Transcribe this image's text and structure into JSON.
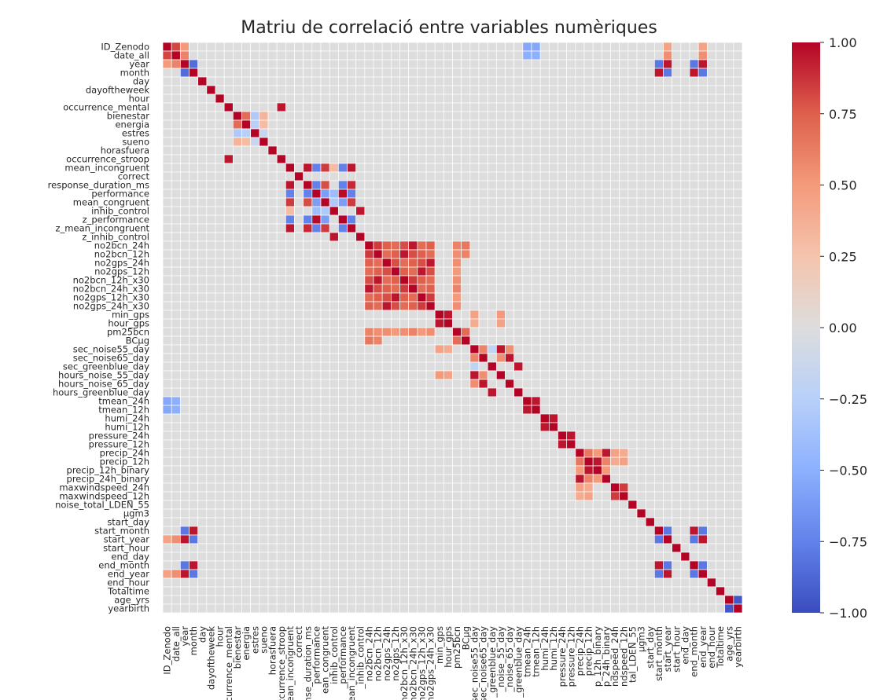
{
  "chart_data": {
    "type": "heatmap",
    "title": "Matriu de correlació entre variables numèriques",
    "variables": [
      "ID_Zenodo",
      "date_all",
      "year",
      "month",
      "day",
      "dayoftheweek",
      "hour",
      "occurrence_mental",
      "bienestar",
      "energia",
      "estres",
      "sueno",
      "horasfuera",
      "occurrence_stroop",
      "mean_incongruent",
      "correct",
      "response_duration_ms",
      "performance",
      "mean_congruent",
      "inhib_control",
      "z_performance",
      "z_mean_incongruent",
      "z_inhib_control",
      "no2bcn_24h",
      "no2bcn_12h",
      "no2gps_24h",
      "no2gps_12h",
      "no2bcn_12h_x30",
      "no2bcn_24h_x30",
      "no2gps_12h_x30",
      "no2gps_24h_x30",
      "min_gps",
      "hour_gps",
      "pm25bcn",
      "BCμg",
      "sec_noise55_day",
      "sec_noise65_day",
      "sec_greenblue_day",
      "hours_noise_55_day",
      "hours_noise_65_day",
      "hours_greenblue_day",
      "tmean_24h",
      "tmean_12h",
      "humi_24h",
      "humi_12h",
      "pressure_24h",
      "pressure_12h",
      "precip_24h",
      "precip_12h",
      "precip_12h_binary",
      "precip_24h_binary",
      "maxwindspeed_24h",
      "maxwindspeed_12h",
      "noise_total_LDEN_55",
      "μgm3",
      "start_day",
      "start_month",
      "start_year",
      "start_hour",
      "end_day",
      "end_month",
      "end_year",
      "end_hour",
      "Totaltime",
      "age_yrs",
      "yearbirth"
    ],
    "xtick_labels": [
      "ID_Zenodo",
      "date_all",
      "year",
      "month",
      "day",
      "dayoftheweek",
      "hour",
      "ccurrence_mental",
      "bienestar",
      "energia",
      "estres",
      "sueno",
      "horasfuera",
      "ccurrence_stroop",
      "ean_incongruent",
      "correct",
      "nse_duration_ms",
      "performance",
      "ean_congruent",
      "inhib_control",
      "_performance",
      "_mean_incongruent",
      "_inhib_control",
      "no2bcn_24h",
      "no2bcn_12h",
      "no2gps_24h",
      "no2gps_12h",
      "no2bcn_12h_x30",
      "no2bcn_24h_x30",
      "no2gps_12h_x30",
      "no2gps_24h_x30",
      "min_gps",
      "hour_gps",
      "pm25bcn",
      "BCμg",
      "sec_noise55_day",
      "sec_noise65_day",
      "_greenblue_day",
      "_noise_55_day",
      "_noise_65_day",
      "_greenblue_day",
      "tmean_24h",
      "tmean_12h",
      "humi_24h",
      "humi_12h",
      "pressure_24h",
      "pressure_12h",
      "precip_24h",
      "precip_12h",
      "p_12h_binary",
      "p_24h_binary",
      "ndspeed_24h",
      "ndspeed_12h",
      "tal_LDEN_55",
      "μgm3",
      "start_day",
      "start_month",
      "start_year",
      "start_hour",
      "end_day",
      "end_month",
      "end_year",
      "end_hour",
      "Totaltime",
      "age_yrs",
      "yearbirth"
    ],
    "value_range": [
      -1.0,
      1.0
    ],
    "colormap": "coolwarm",
    "colorbar_ticks": [
      "1.00",
      "0.75",
      "0.50",
      "0.25",
      "0.00",
      "−0.25",
      "−0.50",
      "−0.75",
      "−1.00"
    ],
    "correlations": [
      [
        0,
        1,
        0.82
      ],
      [
        0,
        2,
        0.5
      ],
      [
        0,
        41,
        -0.55
      ],
      [
        0,
        42,
        -0.55
      ],
      [
        0,
        57,
        0.45
      ],
      [
        0,
        61,
        0.45
      ],
      [
        1,
        2,
        0.6
      ],
      [
        1,
        41,
        -0.5
      ],
      [
        1,
        42,
        -0.5
      ],
      [
        1,
        57,
        0.55
      ],
      [
        1,
        61,
        0.55
      ],
      [
        2,
        3,
        -0.85
      ],
      [
        2,
        57,
        0.95
      ],
      [
        2,
        61,
        0.95
      ],
      [
        2,
        56,
        -0.8
      ],
      [
        2,
        60,
        -0.8
      ],
      [
        3,
        56,
        0.95
      ],
      [
        3,
        60,
        0.95
      ],
      [
        3,
        57,
        -0.8
      ],
      [
        3,
        61,
        -0.8
      ],
      [
        7,
        13,
        0.95
      ],
      [
        8,
        9,
        0.7
      ],
      [
        8,
        10,
        -0.3
      ],
      [
        8,
        11,
        0.35
      ],
      [
        9,
        10,
        -0.25
      ],
      [
        9,
        11,
        0.3
      ],
      [
        10,
        11,
        -0.15
      ],
      [
        14,
        16,
        0.95
      ],
      [
        14,
        17,
        -0.75
      ],
      [
        14,
        18,
        0.85
      ],
      [
        14,
        20,
        -0.75
      ],
      [
        14,
        21,
        0.95
      ],
      [
        14,
        19,
        0.3
      ],
      [
        16,
        17,
        -0.75
      ],
      [
        16,
        18,
        0.8
      ],
      [
        16,
        20,
        -0.75
      ],
      [
        16,
        21,
        0.9
      ],
      [
        17,
        18,
        -0.6
      ],
      [
        17,
        20,
        0.98
      ],
      [
        17,
        21,
        -0.75
      ],
      [
        17,
        19,
        -0.4
      ],
      [
        18,
        19,
        -0.3
      ],
      [
        18,
        20,
        -0.6
      ],
      [
        18,
        21,
        0.85
      ],
      [
        19,
        22,
        0.95
      ],
      [
        20,
        21,
        -0.75
      ],
      [
        23,
        24,
        0.85
      ],
      [
        23,
        25,
        0.75
      ],
      [
        23,
        26,
        0.7
      ],
      [
        23,
        27,
        0.8
      ],
      [
        23,
        28,
        0.95
      ],
      [
        23,
        29,
        0.7
      ],
      [
        23,
        30,
        0.75
      ],
      [
        24,
        25,
        0.7
      ],
      [
        24,
        26,
        0.75
      ],
      [
        24,
        27,
        0.95
      ],
      [
        24,
        28,
        0.8
      ],
      [
        24,
        29,
        0.75
      ],
      [
        24,
        30,
        0.7
      ],
      [
        25,
        26,
        0.8
      ],
      [
        25,
        27,
        0.7
      ],
      [
        25,
        28,
        0.75
      ],
      [
        25,
        29,
        0.8
      ],
      [
        25,
        30,
        0.95
      ],
      [
        26,
        27,
        0.75
      ],
      [
        26,
        28,
        0.7
      ],
      [
        26,
        29,
        0.95
      ],
      [
        26,
        30,
        0.8
      ],
      [
        27,
        28,
        0.85
      ],
      [
        27,
        29,
        0.75
      ],
      [
        27,
        30,
        0.7
      ],
      [
        28,
        29,
        0.7
      ],
      [
        28,
        30,
        0.75
      ],
      [
        29,
        30,
        0.85
      ],
      [
        31,
        32,
        0.95
      ],
      [
        33,
        34,
        0.7
      ],
      [
        23,
        33,
        0.6
      ],
      [
        23,
        34,
        0.65
      ],
      [
        24,
        33,
        0.55
      ],
      [
        24,
        34,
        0.6
      ],
      [
        25,
        33,
        0.55
      ],
      [
        26,
        33,
        0.5
      ],
      [
        27,
        33,
        0.55
      ],
      [
        28,
        33,
        0.6
      ],
      [
        29,
        33,
        0.5
      ],
      [
        30,
        33,
        0.55
      ],
      [
        35,
        36,
        0.6
      ],
      [
        35,
        38,
        0.95
      ],
      [
        35,
        39,
        0.55
      ],
      [
        36,
        39,
        0.95
      ],
      [
        36,
        38,
        0.55
      ],
      [
        37,
        40,
        0.95
      ],
      [
        35,
        37,
        -0.2
      ],
      [
        31,
        35,
        0.45
      ],
      [
        31,
        38,
        0.5
      ],
      [
        32,
        35,
        0.4
      ],
      [
        32,
        38,
        0.45
      ],
      [
        41,
        42,
        0.95
      ],
      [
        43,
        44,
        0.95
      ],
      [
        45,
        46,
        0.95
      ],
      [
        47,
        48,
        0.65
      ],
      [
        47,
        49,
        0.5
      ],
      [
        47,
        50,
        0.95
      ],
      [
        47,
        51,
        0.45
      ],
      [
        47,
        52,
        0.4
      ],
      [
        48,
        49,
        0.95
      ],
      [
        48,
        50,
        0.6
      ],
      [
        48,
        51,
        0.4
      ],
      [
        48,
        52,
        0.45
      ],
      [
        49,
        50,
        0.5
      ],
      [
        51,
        52,
        0.85
      ],
      [
        56,
        57,
        -0.8
      ],
      [
        56,
        60,
        0.95
      ],
      [
        56,
        61,
        -0.8
      ],
      [
        57,
        60,
        -0.8
      ],
      [
        57,
        61,
        0.95
      ],
      [
        60,
        61,
        -0.8
      ],
      [
        64,
        65,
        -0.95
      ]
    ]
  }
}
